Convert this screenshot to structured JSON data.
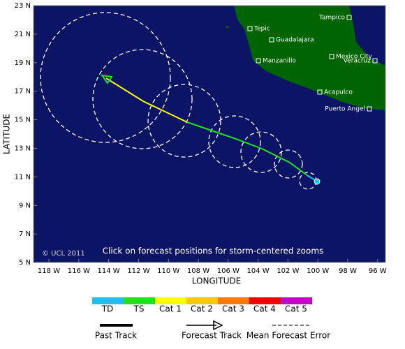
{
  "map": {
    "lat_labels": [
      "23 N",
      "21 N",
      "19 N",
      "17 N",
      "15 N",
      "13 N",
      "11 N",
      "9 N",
      "7 N",
      "5 N"
    ],
    "lon_labels": [
      "118 W",
      "116 W",
      "114 W",
      "112 W",
      "110 W",
      "108 W",
      "106 W",
      "104 W",
      "102 W",
      "100 W",
      "98 W",
      "96 W"
    ],
    "x_axis_label": "LONGITUDE",
    "y_axis_label": "LATITUDE",
    "copyright": "© UCL 2011",
    "note": "Click on forecast positions for storm-centered zooms",
    "cities": [
      "Tampico",
      "Tepic",
      "Guadalajara",
      "Mexico City",
      "Veracruz",
      "Manzanillo",
      "Acapulco",
      "Puerto Angel"
    ]
  },
  "legend": {
    "categories": [
      {
        "label": "TD",
        "color": "#19c3f0"
      },
      {
        "label": "TS",
        "color": "#19e619"
      },
      {
        "label": "Cat 1",
        "color": "#ffff00"
      },
      {
        "label": "Cat 2",
        "color": "#ffc800"
      },
      {
        "label": "Cat 3",
        "color": "#ff7800"
      },
      {
        "label": "Cat 4",
        "color": "#f00000"
      },
      {
        "label": "Cat 5",
        "color": "#c800c8"
      }
    ],
    "tracks": [
      "Past Track",
      "Forecast Track",
      "Mean Forecast Error"
    ]
  }
}
